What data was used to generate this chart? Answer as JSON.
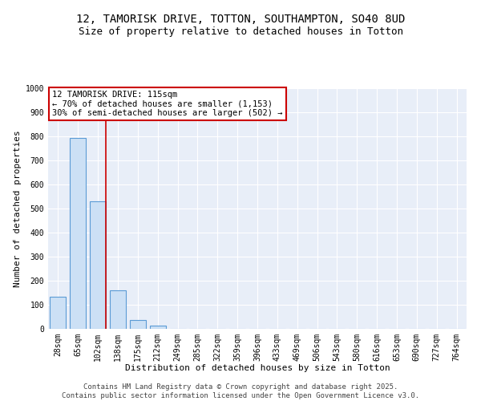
{
  "title": "12, TAMORISK DRIVE, TOTTON, SOUTHAMPTON, SO40 8UD",
  "subtitle": "Size of property relative to detached houses in Totton",
  "xlabel": "Distribution of detached houses by size in Totton",
  "ylabel": "Number of detached properties",
  "bar_color": "#cce0f5",
  "bar_edge_color": "#5b9bd5",
  "categories": [
    "28sqm",
    "65sqm",
    "102sqm",
    "138sqm",
    "175sqm",
    "212sqm",
    "249sqm",
    "285sqm",
    "322sqm",
    "359sqm",
    "396sqm",
    "433sqm",
    "469sqm",
    "506sqm",
    "543sqm",
    "580sqm",
    "616sqm",
    "653sqm",
    "690sqm",
    "727sqm",
    "764sqm"
  ],
  "values": [
    133,
    795,
    530,
    160,
    38,
    13,
    0,
    0,
    0,
    0,
    0,
    0,
    0,
    0,
    0,
    0,
    0,
    0,
    0,
    0,
    0
  ],
  "red_line_x": 2.4,
  "annotation_title": "12 TAMORISK DRIVE: 115sqm",
  "annotation_line1": "← 70% of detached houses are smaller (1,153)",
  "annotation_line2": "30% of semi-detached houses are larger (502) →",
  "annotation_box_color": "#ffffff",
  "annotation_box_edge": "#cc0000",
  "copyright_text": "Contains HM Land Registry data © Crown copyright and database right 2025.\nContains public sector information licensed under the Open Government Licence v3.0.",
  "ylim": [
    0,
    1000
  ],
  "yticks": [
    0,
    100,
    200,
    300,
    400,
    500,
    600,
    700,
    800,
    900,
    1000
  ],
  "background_color": "#e8eef8",
  "grid_color": "#ffffff",
  "title_fontsize": 10,
  "subtitle_fontsize": 9,
  "axis_label_fontsize": 8,
  "tick_fontsize": 7,
  "annotation_fontsize": 7.5,
  "copyright_fontsize": 6.5
}
